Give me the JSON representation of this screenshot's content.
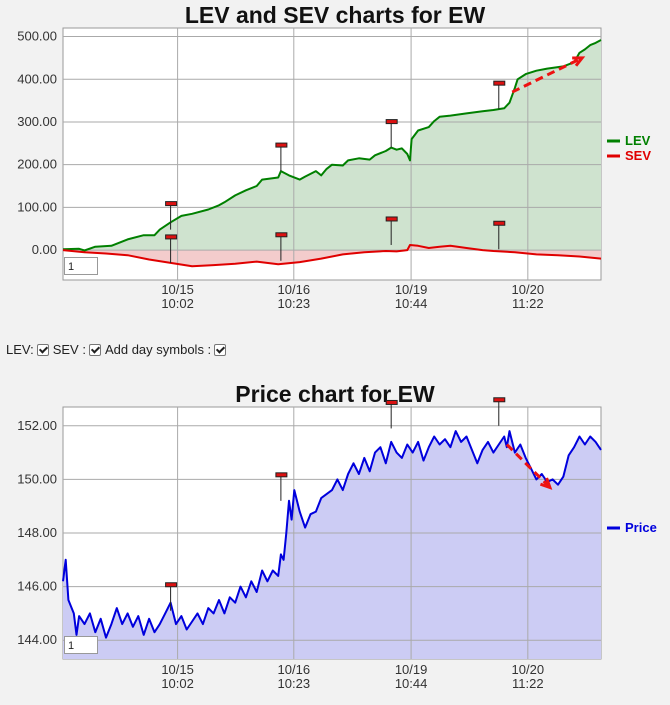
{
  "charts": {
    "lev_sev": {
      "title": "LEV and SEV charts for EW",
      "pager_value": "1"
    },
    "price": {
      "title": "Price chart for EW",
      "pager_value": "1"
    }
  },
  "controls": {
    "lev_label": "LEV:",
    "sev_label": "SEV :",
    "day_symbols_label": "Add day symbols :"
  },
  "colors": {
    "lev": "#008000",
    "lev_fill": "#cfe3cf",
    "sev": "#e00000",
    "sev_fill": "#f3cccc",
    "price": "#0000dd",
    "price_fill": "#ccccf4",
    "arrow": "#ee1111",
    "grid": "#aaaaaa",
    "plot_bg": "#ffffff"
  },
  "chart_data": [
    {
      "type": "area",
      "title": "LEV and SEV charts for EW",
      "ylim": [
        -70,
        520
      ],
      "yticks": [
        0,
        100,
        200,
        300,
        400,
        500
      ],
      "ytick_labels": [
        "0.00",
        "100.00",
        "200.00",
        "300.00",
        "400.00",
        "500.00"
      ],
      "xlim": [
        0,
        1
      ],
      "xticks": [
        {
          "x": 0.213,
          "line1": "10/15",
          "line2": "10:02"
        },
        {
          "x": 0.429,
          "line1": "10/16",
          "line2": "10:23"
        },
        {
          "x": 0.647,
          "line1": "10/19",
          "line2": "10:44"
        },
        {
          "x": 0.864,
          "line1": "10/20",
          "line2": "11:22"
        }
      ],
      "legend": "right",
      "grid": true,
      "series": [
        {
          "name": "LEV",
          "points": [
            [
              0,
              2
            ],
            [
              0.03,
              3
            ],
            [
              0.04,
              -1
            ],
            [
              0.06,
              8
            ],
            [
              0.09,
              10
            ],
            [
              0.12,
              25
            ],
            [
              0.15,
              35
            ],
            [
              0.17,
              35
            ],
            [
              0.18,
              48
            ],
            [
              0.2,
              65
            ],
            [
              0.22,
              80
            ],
            [
              0.24,
              85
            ],
            [
              0.27,
              95
            ],
            [
              0.29,
              105
            ],
            [
              0.3,
              112
            ],
            [
              0.32,
              128
            ],
            [
              0.34,
              140
            ],
            [
              0.36,
              150
            ],
            [
              0.37,
              165
            ],
            [
              0.4,
              170
            ],
            [
              0.405,
              185
            ],
            [
              0.42,
              175
            ],
            [
              0.44,
              165
            ],
            [
              0.45,
              172
            ],
            [
              0.47,
              185
            ],
            [
              0.48,
              175
            ],
            [
              0.49,
              190
            ],
            [
              0.5,
              200
            ],
            [
              0.52,
              198
            ],
            [
              0.53,
              210
            ],
            [
              0.55,
              215
            ],
            [
              0.57,
              212
            ],
            [
              0.58,
              222
            ],
            [
              0.6,
              232
            ],
            [
              0.61,
              240
            ],
            [
              0.62,
              235
            ],
            [
              0.63,
              238
            ],
            [
              0.64,
              225
            ],
            [
              0.645,
              210
            ],
            [
              0.648,
              260
            ],
            [
              0.66,
              280
            ],
            [
              0.68,
              288
            ],
            [
              0.69,
              302
            ],
            [
              0.7,
              312
            ],
            [
              0.72,
              315
            ],
            [
              0.75,
              320
            ],
            [
              0.78,
              325
            ],
            [
              0.8,
              328
            ],
            [
              0.82,
              332
            ],
            [
              0.83,
              345
            ],
            [
              0.84,
              380
            ],
            [
              0.845,
              400
            ],
            [
              0.86,
              412
            ],
            [
              0.88,
              420
            ],
            [
              0.9,
              425
            ],
            [
              0.93,
              430
            ],
            [
              0.95,
              440
            ],
            [
              0.96,
              462
            ],
            [
              0.97,
              470
            ],
            [
              0.98,
              480
            ],
            [
              0.99,
              485
            ],
            [
              1.0,
              492
            ]
          ]
        },
        {
          "name": "SEV",
          "points": [
            [
              0,
              0
            ],
            [
              0.04,
              -5
            ],
            [
              0.08,
              -8
            ],
            [
              0.12,
              -12
            ],
            [
              0.16,
              -22
            ],
            [
              0.2,
              -30
            ],
            [
              0.24,
              -38
            ],
            [
              0.28,
              -35
            ],
            [
              0.32,
              -32
            ],
            [
              0.36,
              -27
            ],
            [
              0.4,
              -33
            ],
            [
              0.44,
              -28
            ],
            [
              0.48,
              -20
            ],
            [
              0.52,
              -10
            ],
            [
              0.56,
              -5
            ],
            [
              0.6,
              -2
            ],
            [
              0.62,
              -3
            ],
            [
              0.64,
              0
            ],
            [
              0.645,
              12
            ],
            [
              0.66,
              10
            ],
            [
              0.68,
              5
            ],
            [
              0.7,
              8
            ],
            [
              0.72,
              10
            ],
            [
              0.75,
              5
            ],
            [
              0.78,
              0
            ],
            [
              0.8,
              -2
            ],
            [
              0.84,
              -5
            ],
            [
              0.88,
              -10
            ],
            [
              0.92,
              -12
            ],
            [
              0.96,
              -15
            ],
            [
              1.0,
              -20
            ]
          ]
        }
      ],
      "day_markers": [
        {
          "series": "LEV",
          "x": 0.2,
          "y": 48
        },
        {
          "series": "LEV",
          "x": 0.405,
          "y": 185
        },
        {
          "series": "LEV",
          "x": 0.61,
          "y": 240
        },
        {
          "series": "LEV",
          "x": 0.81,
          "y": 330
        },
        {
          "series": "SEV",
          "x": 0.2,
          "y": -30
        },
        {
          "series": "SEV",
          "x": 0.405,
          "y": -25
        },
        {
          "series": "SEV",
          "x": 0.61,
          "y": 12
        },
        {
          "series": "SEV",
          "x": 0.81,
          "y": 2
        }
      ],
      "arrow": {
        "from": [
          0.835,
          370
        ],
        "to": [
          0.965,
          450
        ]
      }
    },
    {
      "type": "area",
      "title": "Price chart for EW",
      "ylim": [
        143.3,
        152.7
      ],
      "yticks": [
        144,
        146,
        148,
        150,
        152
      ],
      "ytick_labels": [
        "144.00",
        "146.00",
        "148.00",
        "150.00",
        "152.00"
      ],
      "xlim": [
        0,
        1
      ],
      "xticks": [
        {
          "x": 0.213,
          "line1": "10/15",
          "line2": "10:02"
        },
        {
          "x": 0.429,
          "line1": "10/16",
          "line2": "10:23"
        },
        {
          "x": 0.647,
          "line1": "10/19",
          "line2": "10:44"
        },
        {
          "x": 0.864,
          "line1": "10/20",
          "line2": "11:22"
        }
      ],
      "legend": "right",
      "grid": true,
      "series": [
        {
          "name": "Price",
          "points": [
            [
              0,
              146.2
            ],
            [
              0.005,
              147.0
            ],
            [
              0.01,
              145.5
            ],
            [
              0.02,
              145.0
            ],
            [
              0.025,
              144.2
            ],
            [
              0.03,
              144.9
            ],
            [
              0.04,
              144.6
            ],
            [
              0.05,
              145.0
            ],
            [
              0.06,
              144.3
            ],
            [
              0.07,
              144.8
            ],
            [
              0.08,
              144.1
            ],
            [
              0.09,
              144.6
            ],
            [
              0.1,
              145.2
            ],
            [
              0.11,
              144.6
            ],
            [
              0.12,
              145.0
            ],
            [
              0.13,
              144.5
            ],
            [
              0.14,
              144.9
            ],
            [
              0.15,
              144.2
            ],
            [
              0.16,
              144.8
            ],
            [
              0.17,
              144.3
            ],
            [
              0.18,
              144.6
            ],
            [
              0.19,
              145.0
            ],
            [
              0.2,
              145.4
            ],
            [
              0.21,
              144.6
            ],
            [
              0.22,
              144.9
            ],
            [
              0.23,
              144.4
            ],
            [
              0.24,
              144.7
            ],
            [
              0.25,
              145.0
            ],
            [
              0.26,
              144.6
            ],
            [
              0.27,
              145.2
            ],
            [
              0.28,
              145.0
            ],
            [
              0.29,
              145.5
            ],
            [
              0.3,
              145.0
            ],
            [
              0.31,
              145.6
            ],
            [
              0.32,
              145.4
            ],
            [
              0.33,
              146.0
            ],
            [
              0.34,
              145.6
            ],
            [
              0.35,
              146.2
            ],
            [
              0.36,
              145.8
            ],
            [
              0.37,
              146.6
            ],
            [
              0.38,
              146.2
            ],
            [
              0.39,
              146.6
            ],
            [
              0.4,
              146.4
            ],
            [
              0.405,
              147.2
            ],
            [
              0.41,
              147.0
            ],
            [
              0.415,
              148.0
            ],
            [
              0.42,
              149.2
            ],
            [
              0.425,
              148.5
            ],
            [
              0.43,
              149.6
            ],
            [
              0.44,
              148.8
            ],
            [
              0.45,
              148.2
            ],
            [
              0.46,
              148.7
            ],
            [
              0.47,
              148.8
            ],
            [
              0.48,
              149.3
            ],
            [
              0.5,
              149.6
            ],
            [
              0.51,
              150.0
            ],
            [
              0.52,
              149.6
            ],
            [
              0.53,
              150.2
            ],
            [
              0.54,
              150.6
            ],
            [
              0.55,
              150.2
            ],
            [
              0.56,
              150.8
            ],
            [
              0.57,
              150.3
            ],
            [
              0.58,
              151.0
            ],
            [
              0.59,
              151.2
            ],
            [
              0.6,
              150.6
            ],
            [
              0.61,
              151.4
            ],
            [
              0.62,
              151.0
            ],
            [
              0.63,
              150.8
            ],
            [
              0.64,
              151.3
            ],
            [
              0.65,
              151.0
            ],
            [
              0.66,
              151.4
            ],
            [
              0.67,
              150.7
            ],
            [
              0.68,
              151.2
            ],
            [
              0.69,
              151.6
            ],
            [
              0.7,
              151.3
            ],
            [
              0.71,
              151.5
            ],
            [
              0.72,
              151.2
            ],
            [
              0.73,
              151.8
            ],
            [
              0.74,
              151.4
            ],
            [
              0.75,
              151.6
            ],
            [
              0.76,
              151.1
            ],
            [
              0.77,
              150.6
            ],
            [
              0.78,
              151.1
            ],
            [
              0.79,
              151.4
            ],
            [
              0.8,
              151.0
            ],
            [
              0.81,
              151.3
            ],
            [
              0.82,
              151.6
            ],
            [
              0.825,
              151.2
            ],
            [
              0.83,
              151.8
            ],
            [
              0.835,
              151.4
            ],
            [
              0.84,
              151.0
            ],
            [
              0.85,
              151.3
            ],
            [
              0.86,
              150.8
            ],
            [
              0.87,
              150.4
            ],
            [
              0.88,
              150.0
            ],
            [
              0.89,
              150.2
            ],
            [
              0.9,
              149.9
            ],
            [
              0.91,
              150.0
            ],
            [
              0.92,
              149.8
            ],
            [
              0.93,
              150.1
            ],
            [
              0.94,
              150.9
            ],
            [
              0.95,
              151.2
            ],
            [
              0.96,
              151.6
            ],
            [
              0.97,
              151.3
            ],
            [
              0.98,
              151.6
            ],
            [
              0.99,
              151.4
            ],
            [
              1.0,
              151.1
            ]
          ]
        }
      ],
      "day_markers": [
        {
          "series": "Price",
          "x": 0.2,
          "y": 145.1
        },
        {
          "series": "Price",
          "x": 0.405,
          "y": 149.2
        },
        {
          "series": "Price",
          "x": 0.61,
          "y": 151.9
        },
        {
          "series": "Price",
          "x": 0.81,
          "y": 152.0
        }
      ],
      "arrow": {
        "from": [
          0.825,
          151.3
        ],
        "to": [
          0.905,
          149.7
        ]
      }
    }
  ]
}
